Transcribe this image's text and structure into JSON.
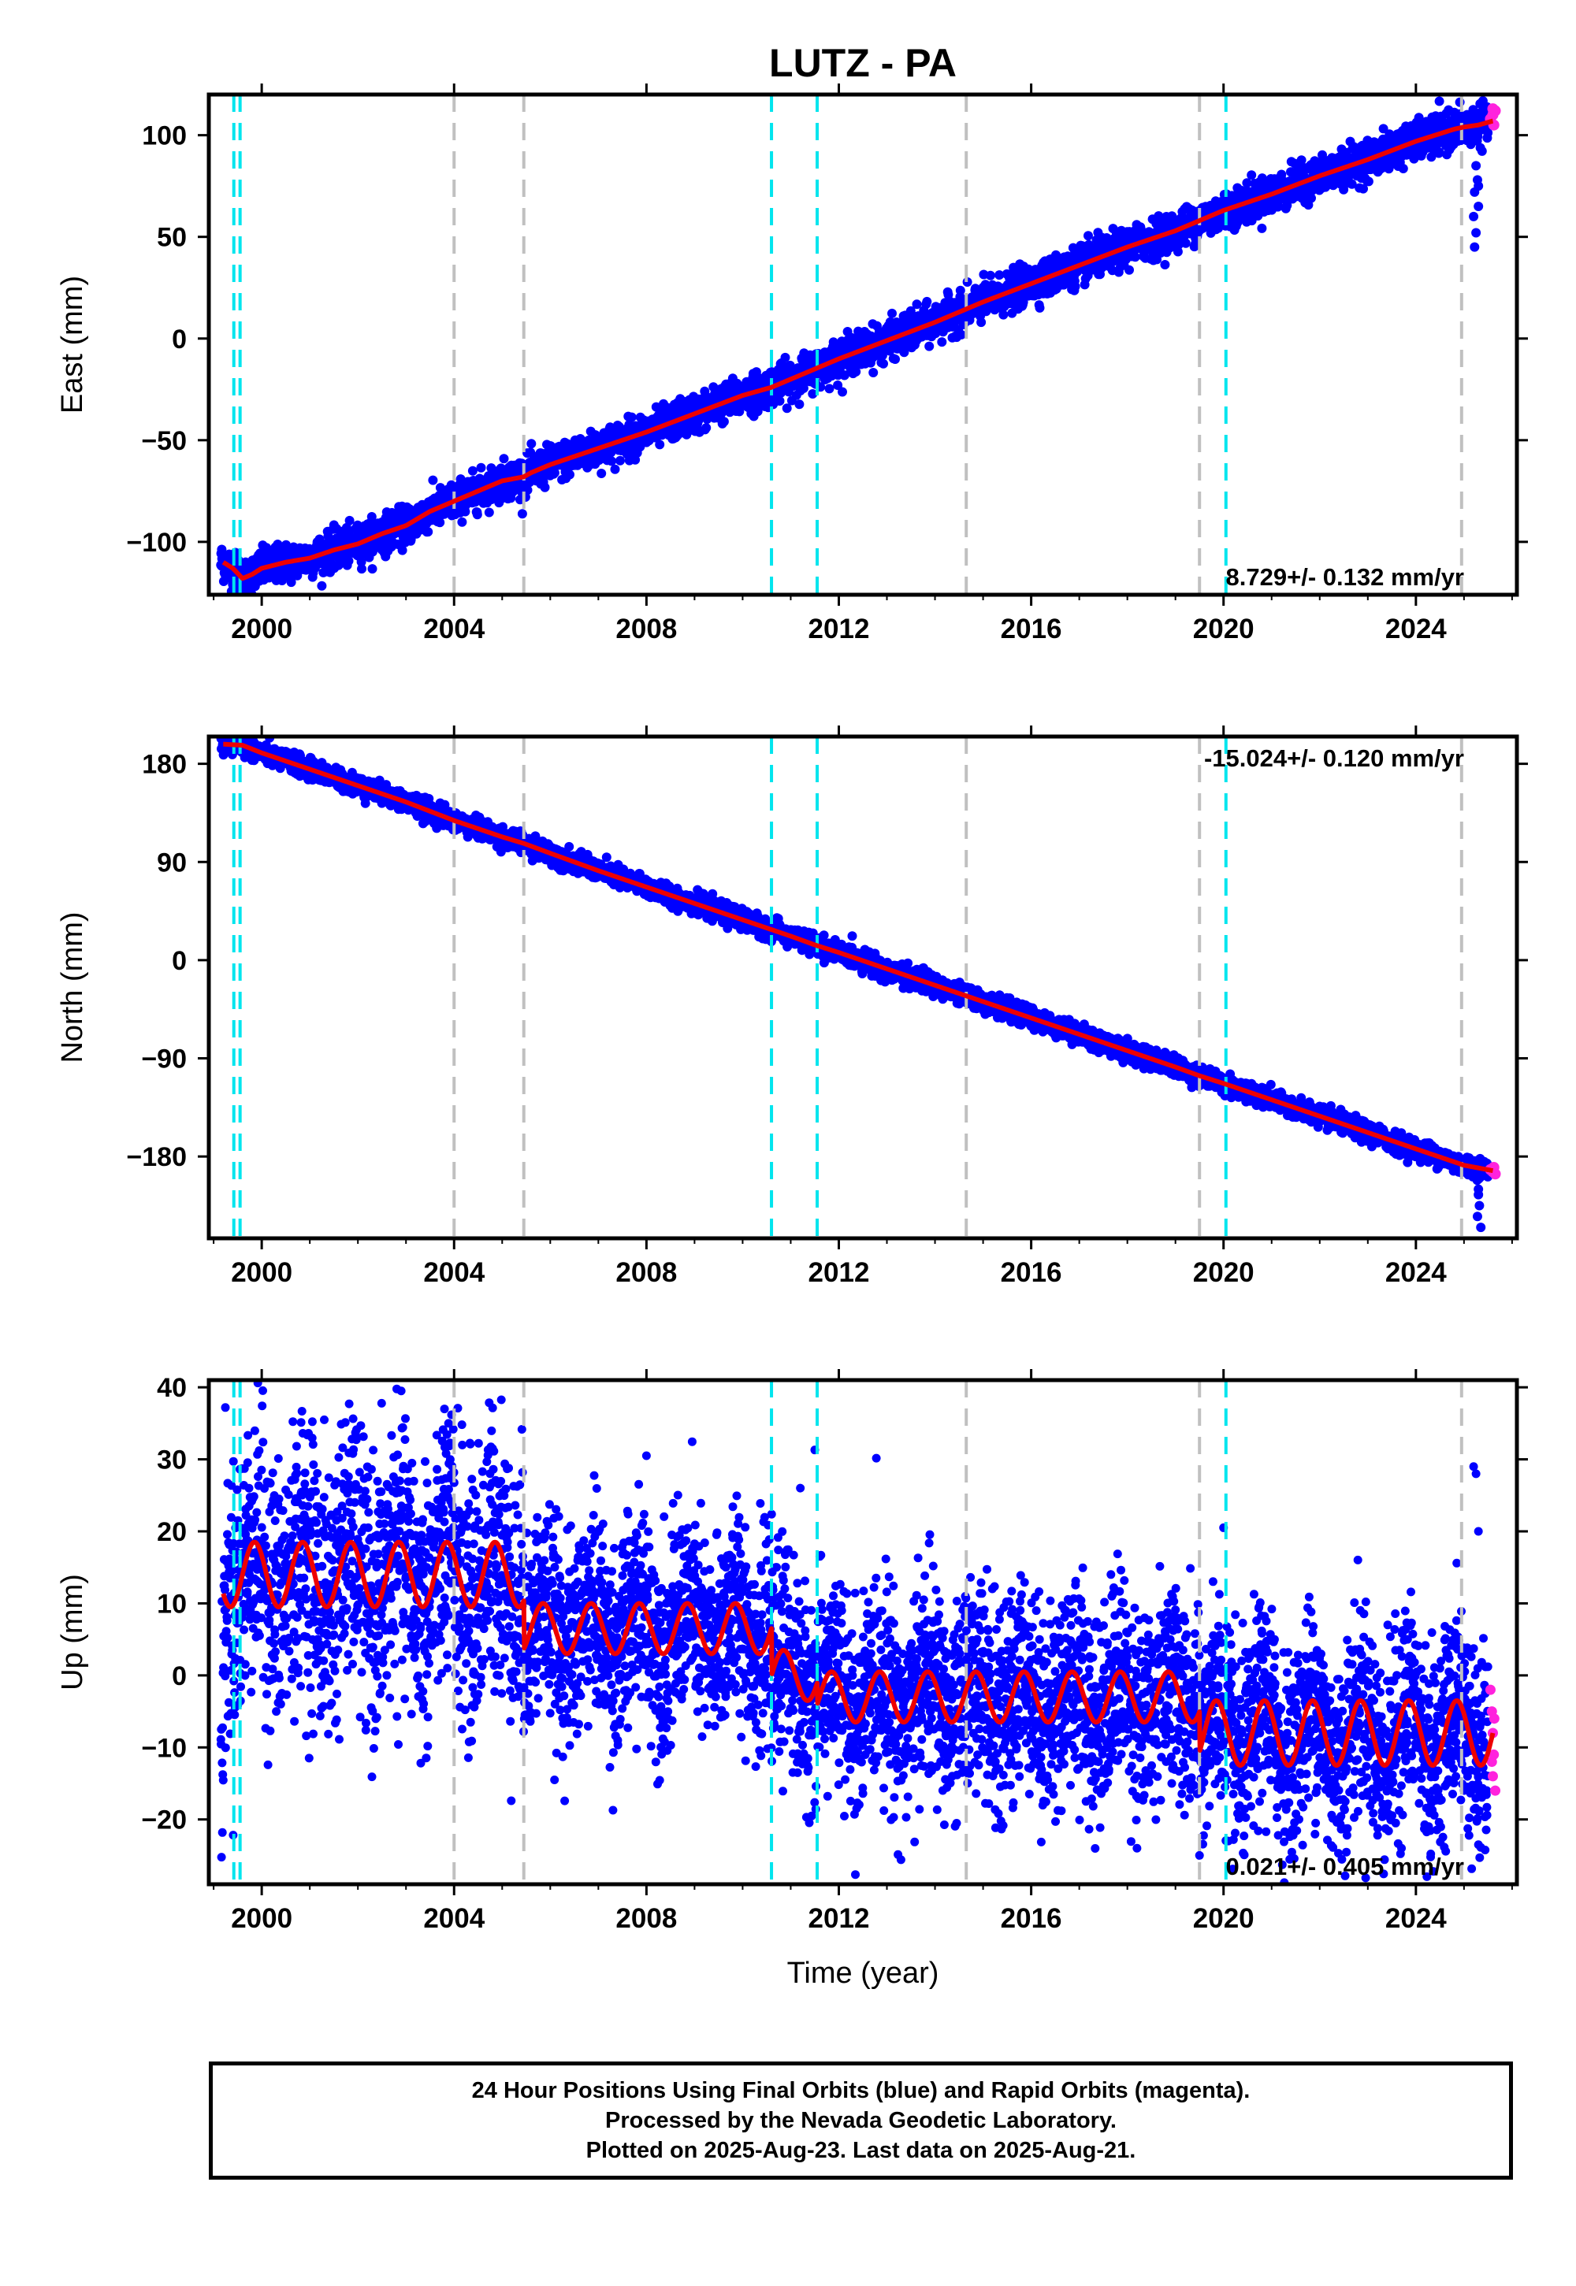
{
  "title": "LUTZ - PA",
  "colors": {
    "final_orbits": "#0000ff",
    "rapid_orbits": "#ff22dd",
    "model": "#ee0000",
    "antenna_change": "#00e5ee",
    "equipment_change": "#c0c0c0",
    "frame": "#000000"
  },
  "chart_data": [
    {
      "type": "scatter",
      "title": "LUTZ - PA",
      "ylabel": "East (mm)",
      "xlabel": "",
      "xlim": [
        1998.9,
        2026.1
      ],
      "ylim": [
        -126,
        120
      ],
      "yticks": [
        -100,
        -50,
        0,
        50,
        100
      ],
      "ytick_labels": [
        "−100",
        "−50",
        "0",
        "50",
        "100"
      ],
      "xticks": [
        2000,
        2004,
        2008,
        2012,
        2016,
        2020,
        2024
      ],
      "xtick_labels": [
        "2000",
        "2004",
        "2008",
        "2012",
        "2016",
        "2020",
        "2024"
      ],
      "rate_label": "8.729+/- 0.132 mm/yr",
      "rate_position": "bottom-right",
      "model_points": [
        [
          1999.2,
          -110
        ],
        [
          1999.4,
          -113
        ],
        [
          1999.6,
          -118
        ],
        [
          1999.8,
          -116
        ],
        [
          2000.0,
          -113
        ],
        [
          2000.5,
          -110
        ],
        [
          2001.0,
          -108
        ],
        [
          2001.5,
          -104
        ],
        [
          2002.0,
          -101
        ],
        [
          2002.5,
          -96
        ],
        [
          2003.0,
          -92
        ],
        [
          2003.5,
          -85
        ],
        [
          2004.0,
          -80
        ],
        [
          2004.5,
          -75
        ],
        [
          2005.0,
          -70
        ],
        [
          2005.45,
          -68
        ],
        [
          2005.6,
          -66
        ],
        [
          2006.0,
          -62
        ],
        [
          2007.0,
          -54
        ],
        [
          2008.0,
          -46
        ],
        [
          2009.0,
          -37
        ],
        [
          2010.0,
          -28
        ],
        [
          2010.6,
          -24
        ],
        [
          2011.0,
          -20
        ],
        [
          2011.5,
          -15
        ],
        [
          2012.0,
          -10
        ],
        [
          2013.0,
          -1
        ],
        [
          2014.0,
          8
        ],
        [
          2014.6,
          14
        ],
        [
          2015.0,
          18
        ],
        [
          2016.0,
          27
        ],
        [
          2017.0,
          36
        ],
        [
          2018.0,
          45
        ],
        [
          2019.0,
          53
        ],
        [
          2019.5,
          58
        ],
        [
          2020.0,
          63
        ],
        [
          2021.0,
          71
        ],
        [
          2022.0,
          80
        ],
        [
          2023.0,
          88
        ],
        [
          2024.0,
          97
        ],
        [
          2024.8,
          103
        ],
        [
          2025.0,
          104
        ],
        [
          2025.3,
          105
        ],
        [
          2025.6,
          107
        ]
      ],
      "scatter_scale": 4.5,
      "outliers": [
        [
          2025.25,
          85
        ],
        [
          2025.28,
          78
        ],
        [
          2025.22,
          72
        ],
        [
          2025.3,
          65
        ],
        [
          2025.2,
          60
        ],
        [
          2025.25,
          52
        ],
        [
          2025.22,
          45
        ],
        [
          2025.3,
          75
        ]
      ],
      "rapid_points": [
        [
          2025.55,
          108
        ],
        [
          2025.6,
          110
        ],
        [
          2025.65,
          112
        ],
        [
          2025.6,
          113
        ],
        [
          2025.62,
          105
        ]
      ]
    },
    {
      "type": "scatter",
      "ylabel": "North (mm)",
      "xlabel": "",
      "xlim": [
        1998.9,
        2026.1
      ],
      "ylim": [
        -255,
        205
      ],
      "yticks": [
        -180,
        -90,
        0,
        90,
        180
      ],
      "ytick_labels": [
        "−180",
        "−90",
        "0",
        "90",
        "180"
      ],
      "xticks": [
        2000,
        2004,
        2008,
        2012,
        2016,
        2020,
        2024
      ],
      "xtick_labels": [
        "2000",
        "2004",
        "2008",
        "2012",
        "2016",
        "2020",
        "2024"
      ],
      "rate_label": "-15.024+/- 0.120 mm/yr",
      "rate_position": "top-right",
      "model_points": [
        [
          1999.2,
          198
        ],
        [
          1999.6,
          197
        ],
        [
          2000.0,
          190
        ],
        [
          2001.0,
          175
        ],
        [
          2002.0,
          160
        ],
        [
          2003.0,
          145
        ],
        [
          2004.0,
          128
        ],
        [
          2005.0,
          113
        ],
        [
          2005.45,
          107
        ],
        [
          2006.0,
          98
        ],
        [
          2007.0,
          82
        ],
        [
          2008.0,
          67
        ],
        [
          2009.0,
          52
        ],
        [
          2010.0,
          37
        ],
        [
          2010.6,
          28
        ],
        [
          2011.0,
          22
        ],
        [
          2011.5,
          14
        ],
        [
          2012.0,
          7
        ],
        [
          2013.0,
          -8
        ],
        [
          2014.0,
          -23
        ],
        [
          2015.0,
          -38
        ],
        [
          2016.0,
          -53
        ],
        [
          2017.0,
          -68
        ],
        [
          2018.0,
          -83
        ],
        [
          2019.0,
          -98
        ],
        [
          2019.5,
          -106
        ],
        [
          2020.0,
          -113
        ],
        [
          2021.0,
          -128
        ],
        [
          2022.0,
          -143
        ],
        [
          2023.0,
          -158
        ],
        [
          2024.0,
          -173
        ],
        [
          2025.0,
          -188
        ],
        [
          2025.6,
          -193
        ]
      ],
      "scatter_scale": 4.5,
      "outliers": [
        [
          2025.3,
          -215
        ],
        [
          2025.32,
          -225
        ],
        [
          2025.28,
          -235
        ],
        [
          2025.35,
          -245
        ],
        [
          2025.3,
          -210
        ]
      ],
      "rapid_points": [
        [
          2025.55,
          -192
        ],
        [
          2025.6,
          -194
        ],
        [
          2025.62,
          -190
        ],
        [
          2025.65,
          -196
        ]
      ]
    },
    {
      "type": "scatter",
      "ylabel": "Up (mm)",
      "xlabel": "Time (year)",
      "xlim": [
        1998.9,
        2026.1
      ],
      "ylim": [
        -29,
        41
      ],
      "yticks": [
        -20,
        -10,
        0,
        10,
        20,
        30,
        40
      ],
      "ytick_labels": [
        "−20",
        "−10",
        "0",
        "10",
        "20",
        "30",
        "40"
      ],
      "xticks": [
        2000,
        2004,
        2008,
        2012,
        2016,
        2020,
        2024
      ],
      "xtick_labels": [
        "2000",
        "2004",
        "2008",
        "2012",
        "2016",
        "2020",
        "2024"
      ],
      "rate_label": "0.021+/- 0.405 mm/yr",
      "rate_position": "bottom-right",
      "model_segments": [
        {
          "start": 1999.2,
          "end": 2005.45,
          "base": 14,
          "amp": 4.5
        },
        {
          "start": 2005.45,
          "end": 2010.6,
          "base": 6.5,
          "amp": 3.5
        },
        {
          "start": 2010.6,
          "end": 2011.55,
          "base": 0,
          "amp": 3.5
        },
        {
          "start": 2011.55,
          "end": 2019.5,
          "base": -3,
          "amp": 3.5
        },
        {
          "start": 2019.5,
          "end": 2025.6,
          "base": -8,
          "amp": 4.5
        }
      ],
      "scatter_scale": 7,
      "outliers": [
        [
          2002.9,
          39.5
        ],
        [
          2003.8,
          37
        ],
        [
          2004.8,
          31.5
        ],
        [
          2008.0,
          30.5
        ],
        [
          2011.5,
          31.3
        ],
        [
          2011.2,
          26
        ],
        [
          2020.0,
          20.5
        ],
        [
          2025.2,
          29
        ],
        [
          2025.25,
          28
        ],
        [
          2025.3,
          20
        ],
        [
          2019.5,
          -25
        ],
        [
          2018.2,
          -24
        ],
        [
          2020.1,
          -23
        ],
        [
          2023.7,
          -24
        ],
        [
          2025.3,
          -23.5
        ]
      ],
      "rapid_points": [
        [
          2025.55,
          -2
        ],
        [
          2025.58,
          -5
        ],
        [
          2025.6,
          -8
        ],
        [
          2025.62,
          -11
        ],
        [
          2025.6,
          -14
        ],
        [
          2025.65,
          -16
        ],
        [
          2025.58,
          -12
        ],
        [
          2025.63,
          -6
        ]
      ]
    }
  ],
  "events": {
    "antenna_change": [
      1999.42,
      1999.55,
      2010.6,
      2011.55,
      2020.05
    ],
    "equipment_change": [
      2004.0,
      2005.45,
      2014.65,
      2019.5,
      2024.95
    ]
  },
  "footer": {
    "line1": "24 Hour Positions Using Final Orbits (blue) and Rapid Orbits (magenta).",
    "line2": "Processed by the Nevada Geodetic Laboratory.",
    "line3": "Plotted on 2025-Aug-23. Last data on 2025-Aug-21."
  }
}
